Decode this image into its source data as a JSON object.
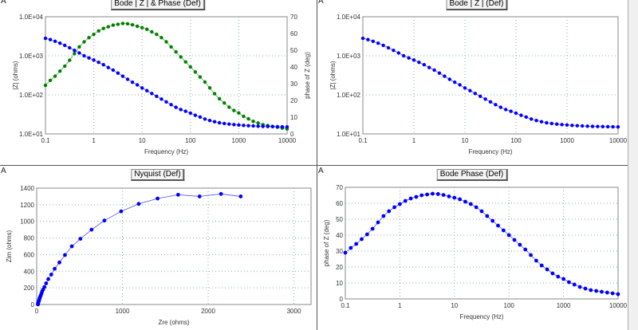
{
  "panels": [
    {
      "corner": "A",
      "title": "Bode | Z | & Phase (Def)"
    },
    {
      "corner": "A",
      "title": "Bode | Z | (Def)"
    },
    {
      "corner": "A",
      "title": "Nyquist (Def)"
    },
    {
      "corner": "A",
      "title": "Bode Phase (Def)"
    }
  ],
  "colors": {
    "modulus": "#0000ff",
    "phase_bode1": "#008000",
    "phase": "#0000ff",
    "grid": "#7fb0b0"
  },
  "chart_data": [
    {
      "type": "scatter",
      "title": "Bode | Z | & Phase (Def)",
      "xlabel": "Frequency (Hz)",
      "ylabel": "|Z| (ohms)",
      "y2label": "phase of Z (deg)",
      "xscale": "log",
      "xlim": [
        0.1,
        10000
      ],
      "yscale": "log",
      "ylim": [
        10,
        10000
      ],
      "y2lim": [
        0,
        70
      ],
      "xticks": [
        "0.1",
        "1",
        "10",
        "100",
        "1000",
        "10000"
      ],
      "yticks": [
        "1.0E+01",
        "1.0E+02",
        "1.0E+03",
        "1.0E+04"
      ],
      "y2ticks": [
        "0",
        "10",
        "20",
        "30",
        "40",
        "50",
        "60",
        "70"
      ],
      "series": [
        "modulus",
        "phase"
      ]
    },
    {
      "type": "scatter",
      "title": "Bode | Z | (Def)",
      "xlabel": "Frequency (Hz)",
      "ylabel": "|Z| (ohms)",
      "xscale": "log",
      "xlim": [
        0.1,
        10000
      ],
      "yscale": "log",
      "ylim": [
        10,
        10000
      ],
      "xticks": [
        "0.1",
        "1",
        "10",
        "100",
        "1000",
        "10000"
      ],
      "yticks": [
        "1.0E+01",
        "1.0E+02",
        "1.0E+03",
        "1.0E+04"
      ],
      "series": [
        "modulus"
      ]
    },
    {
      "type": "line",
      "title": "Nyquist (Def)",
      "xlabel": "Zre (ohms)",
      "ylabel": "Zim (ohms)",
      "xlim": [
        0,
        3200
      ],
      "ylim": [
        0,
        1400
      ],
      "xticks": [
        "0",
        "1000",
        "2000",
        "3000"
      ],
      "yticks": [
        "0",
        "200",
        "400",
        "600",
        "800",
        "1000",
        "1200",
        "1400"
      ],
      "series": [
        "nyquist"
      ]
    },
    {
      "type": "line",
      "title": "Bode Phase (Def)",
      "xlabel": "Frequency (Hz)",
      "ylabel": "phase of Z (deg)",
      "xscale": "log",
      "xlim": [
        0.1,
        10000
      ],
      "ylim": [
        0,
        70
      ],
      "xticks": [
        "0.1",
        "1",
        "10",
        "100",
        "1000",
        "10000"
      ],
      "yticks": [
        "0",
        "10",
        "20",
        "30",
        "40",
        "50",
        "60",
        "70"
      ],
      "series": [
        "phase"
      ]
    }
  ],
  "data": {
    "decades_points_per_decade": 10,
    "modulus": [
      2800,
      2600,
      2350,
      2100,
      1850,
      1600,
      1380,
      1180,
      1000,
      880,
      780,
      680,
      590,
      500,
      430,
      360,
      300,
      250,
      210,
      180,
      150,
      128,
      108,
      92,
      78,
      66,
      56,
      48,
      42,
      38,
      34,
      30,
      27,
      24,
      22,
      20.5,
      19.3,
      18.5,
      17.8,
      17.3,
      16.9,
      16.5,
      16.2,
      16,
      15.8,
      15.6,
      15.5,
      15.4,
      15.3,
      15.2,
      15.1
    ],
    "phase": [
      29,
      32,
      34.5,
      37.5,
      40.5,
      44,
      48,
      52,
      55,
      57.5,
      59.5,
      61.5,
      63,
      64,
      65,
      65.5,
      66,
      65.8,
      65.2,
      64.3,
      63.5,
      62.5,
      61,
      59.5,
      57.5,
      55,
      52,
      49,
      46,
      43,
      40,
      37,
      34,
      31,
      27.5,
      24,
      21,
      18.5,
      16,
      14,
      12.5,
      10.5,
      9,
      7.5,
      6.5,
      5.5,
      5,
      4.5,
      4,
      3.5,
      3
    ],
    "nyquist": {
      "zre": [
        2380,
        2150,
        1900,
        1650,
        1410,
        1190,
        985,
        790,
        640,
        510,
        410,
        330,
        265,
        210,
        170,
        135,
        110,
        90,
        75,
        63,
        55,
        48,
        42,
        37,
        33,
        30,
        27,
        24,
        22,
        20,
        18,
        17,
        16,
        15.6,
        15.4,
        15.2,
        15.1
      ],
      "zim": [
        1300,
        1330,
        1300,
        1320,
        1275,
        1210,
        1120,
        1010,
        900,
        790,
        700,
        595,
        505,
        430,
        360,
        305,
        255,
        210,
        180,
        155,
        130,
        110,
        95,
        82,
        70,
        58,
        48,
        40,
        33,
        27,
        21,
        16,
        12,
        9,
        6,
        3,
        1
      ]
    }
  }
}
